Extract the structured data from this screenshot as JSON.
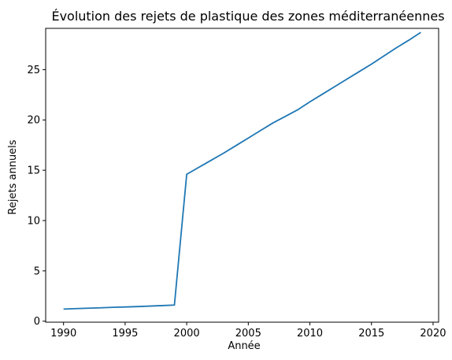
{
  "chart_data": {
    "type": "line",
    "title": "Évolution des rejets de plastique des zones méditerranéennes",
    "xlabel": "Année",
    "ylabel": "Rejets annuels",
    "xlim": [
      1988.55,
      2020.45
    ],
    "ylim": [
      -0.1,
      29.1
    ],
    "xticks": [
      1990,
      1995,
      2000,
      2005,
      2010,
      2015,
      2020
    ],
    "yticks": [
      0,
      5,
      10,
      15,
      20,
      25
    ],
    "grid": false,
    "legend": "none",
    "series": [
      {
        "color": "#1f77b4",
        "x": [
          1990,
          1991,
          1992,
          1993,
          1994,
          1995,
          1996,
          1997,
          1998,
          1999,
          2000,
          2001,
          2002,
          2003,
          2004,
          2005,
          2006,
          2007,
          2008,
          2009,
          2010,
          2011,
          2012,
          2013,
          2014,
          2015,
          2016,
          2017,
          2018,
          2019
        ],
        "y": [
          1.2,
          1.25,
          1.29,
          1.33,
          1.38,
          1.41,
          1.45,
          1.5,
          1.55,
          1.6,
          14.6,
          15.3,
          16.0,
          16.7,
          17.45,
          18.2,
          18.95,
          19.7,
          20.35,
          21.0,
          21.8,
          22.55,
          23.3,
          24.05,
          24.8,
          25.55,
          26.35,
          27.15,
          27.9,
          28.7
        ]
      }
    ]
  }
}
